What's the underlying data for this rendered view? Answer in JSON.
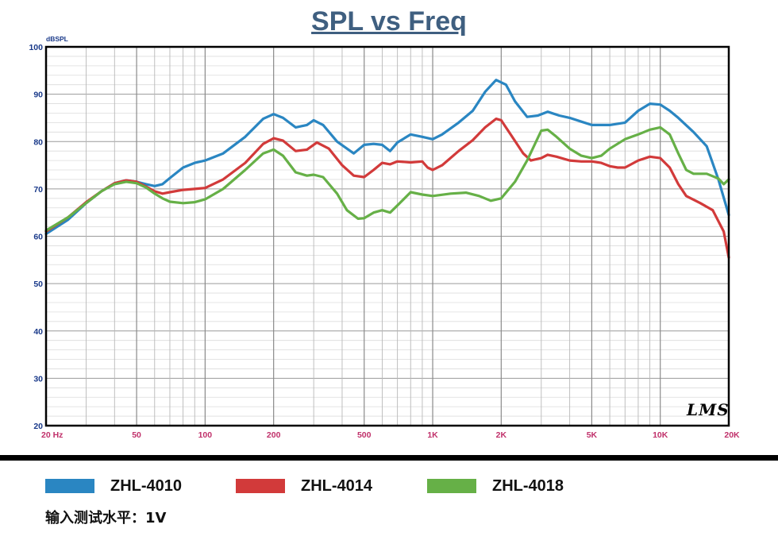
{
  "chart_data": {
    "type": "line",
    "title": "SPL vs Freq",
    "ylabel": "dBSPL",
    "xlabel": "",
    "x_scale": "log",
    "xlim": [
      20,
      20000
    ],
    "ylim": [
      20,
      100
    ],
    "grid": true,
    "x_ticks": [
      {
        "value": 20,
        "label": "20  Hz"
      },
      {
        "value": 50,
        "label": "50"
      },
      {
        "value": 100,
        "label": "100"
      },
      {
        "value": 200,
        "label": "200"
      },
      {
        "value": 500,
        "label": "500"
      },
      {
        "value": 1000,
        "label": "1K"
      },
      {
        "value": 2000,
        "label": "2K"
      },
      {
        "value": 5000,
        "label": "5K"
      },
      {
        "value": 10000,
        "label": "10K"
      },
      {
        "value": 20000,
        "label": "20K"
      }
    ],
    "y_ticks": [
      {
        "value": 20,
        "label": "20"
      },
      {
        "value": 30,
        "label": "30"
      },
      {
        "value": 40,
        "label": "40"
      },
      {
        "value": 50,
        "label": "50"
      },
      {
        "value": 60,
        "label": "60"
      },
      {
        "value": 70,
        "label": "70"
      },
      {
        "value": 80,
        "label": "80"
      },
      {
        "value": 90,
        "label": "90"
      },
      {
        "value": 100,
        "label": "100"
      }
    ],
    "series": [
      {
        "name": "ZHL-4010",
        "color": "#2a86c2",
        "points": [
          [
            20,
            60.5
          ],
          [
            25,
            63.5
          ],
          [
            30,
            67
          ],
          [
            35,
            69.5
          ],
          [
            40,
            71.2
          ],
          [
            45,
            71.8
          ],
          [
            50,
            71.5
          ],
          [
            55,
            71
          ],
          [
            60,
            70.6
          ],
          [
            65,
            71
          ],
          [
            70,
            72.3
          ],
          [
            80,
            74.5
          ],
          [
            90,
            75.5
          ],
          [
            100,
            76
          ],
          [
            120,
            77.5
          ],
          [
            150,
            81
          ],
          [
            180,
            84.8
          ],
          [
            200,
            85.8
          ],
          [
            220,
            85
          ],
          [
            250,
            83
          ],
          [
            280,
            83.5
          ],
          [
            300,
            84.5
          ],
          [
            330,
            83.5
          ],
          [
            380,
            80
          ],
          [
            450,
            77.5
          ],
          [
            500,
            79.3
          ],
          [
            550,
            79.5
          ],
          [
            600,
            79.3
          ],
          [
            650,
            78
          ],
          [
            700,
            79.8
          ],
          [
            800,
            81.5
          ],
          [
            900,
            81
          ],
          [
            1000,
            80.5
          ],
          [
            1100,
            81.5
          ],
          [
            1300,
            84
          ],
          [
            1500,
            86.5
          ],
          [
            1700,
            90.5
          ],
          [
            1900,
            93
          ],
          [
            2100,
            92
          ],
          [
            2300,
            88.5
          ],
          [
            2600,
            85.2
          ],
          [
            2900,
            85.5
          ],
          [
            3200,
            86.3
          ],
          [
            3600,
            85.5
          ],
          [
            4000,
            85
          ],
          [
            4500,
            84.2
          ],
          [
            5000,
            83.5
          ],
          [
            5500,
            83.5
          ],
          [
            6000,
            83.5
          ],
          [
            7000,
            84
          ],
          [
            8000,
            86.5
          ],
          [
            9000,
            88
          ],
          [
            10000,
            87.8
          ],
          [
            11000,
            86.5
          ],
          [
            12000,
            85
          ],
          [
            14000,
            82
          ],
          [
            16000,
            79
          ],
          [
            18000,
            72
          ],
          [
            20000,
            64.5
          ]
        ]
      },
      {
        "name": "ZHL-4014",
        "color": "#d23a3a",
        "points": [
          [
            20,
            61
          ],
          [
            25,
            64
          ],
          [
            30,
            67.2
          ],
          [
            35,
            69.5
          ],
          [
            40,
            71.2
          ],
          [
            45,
            71.8
          ],
          [
            50,
            71.5
          ],
          [
            55,
            70.5
          ],
          [
            60,
            69.5
          ],
          [
            65,
            69
          ],
          [
            70,
            69.3
          ],
          [
            80,
            69.8
          ],
          [
            90,
            70
          ],
          [
            100,
            70.2
          ],
          [
            120,
            72
          ],
          [
            150,
            75.5
          ],
          [
            180,
            79.5
          ],
          [
            200,
            80.7
          ],
          [
            220,
            80.2
          ],
          [
            250,
            78
          ],
          [
            280,
            78.3
          ],
          [
            310,
            79.8
          ],
          [
            350,
            78.5
          ],
          [
            400,
            75
          ],
          [
            450,
            72.8
          ],
          [
            500,
            72.5
          ],
          [
            550,
            74
          ],
          [
            600,
            75.5
          ],
          [
            650,
            75.2
          ],
          [
            700,
            75.8
          ],
          [
            800,
            75.6
          ],
          [
            900,
            75.8
          ],
          [
            950,
            74.5
          ],
          [
            1000,
            74
          ],
          [
            1100,
            75
          ],
          [
            1300,
            78
          ],
          [
            1500,
            80.3
          ],
          [
            1700,
            83
          ],
          [
            1900,
            84.8
          ],
          [
            2000,
            84.5
          ],
          [
            2200,
            81.5
          ],
          [
            2500,
            77.5
          ],
          [
            2700,
            76
          ],
          [
            3000,
            76.5
          ],
          [
            3200,
            77.2
          ],
          [
            3500,
            76.8
          ],
          [
            4000,
            76
          ],
          [
            4500,
            75.8
          ],
          [
            5000,
            75.8
          ],
          [
            5500,
            75.5
          ],
          [
            6000,
            74.8
          ],
          [
            6500,
            74.5
          ],
          [
            7000,
            74.5
          ],
          [
            8000,
            76
          ],
          [
            9000,
            76.8
          ],
          [
            10000,
            76.5
          ],
          [
            11000,
            74.5
          ],
          [
            12000,
            71
          ],
          [
            13000,
            68.5
          ],
          [
            15000,
            67
          ],
          [
            17000,
            65.5
          ],
          [
            19000,
            61
          ],
          [
            20000,
            55.5
          ]
        ]
      },
      {
        "name": "ZHL-4018",
        "color": "#66b047",
        "points": [
          [
            20,
            61.2
          ],
          [
            25,
            64
          ],
          [
            30,
            67
          ],
          [
            35,
            69.5
          ],
          [
            40,
            71
          ],
          [
            45,
            71.5
          ],
          [
            50,
            71.2
          ],
          [
            55,
            70.3
          ],
          [
            60,
            69
          ],
          [
            65,
            68
          ],
          [
            70,
            67.3
          ],
          [
            80,
            67
          ],
          [
            90,
            67.2
          ],
          [
            100,
            67.8
          ],
          [
            120,
            70
          ],
          [
            150,
            74
          ],
          [
            180,
            77.5
          ],
          [
            200,
            78.3
          ],
          [
            220,
            77
          ],
          [
            250,
            73.5
          ],
          [
            280,
            72.8
          ],
          [
            300,
            73
          ],
          [
            330,
            72.5
          ],
          [
            380,
            69
          ],
          [
            420,
            65.5
          ],
          [
            470,
            63.7
          ],
          [
            500,
            63.8
          ],
          [
            550,
            65
          ],
          [
            600,
            65.5
          ],
          [
            650,
            65
          ],
          [
            700,
            66.5
          ],
          [
            800,
            69.3
          ],
          [
            900,
            68.8
          ],
          [
            1000,
            68.5
          ],
          [
            1200,
            69
          ],
          [
            1400,
            69.2
          ],
          [
            1600,
            68.5
          ],
          [
            1800,
            67.5
          ],
          [
            2000,
            68
          ],
          [
            2300,
            71.5
          ],
          [
            2600,
            76
          ],
          [
            3000,
            82.3
          ],
          [
            3200,
            82.5
          ],
          [
            3500,
            81
          ],
          [
            4000,
            78.5
          ],
          [
            4500,
            77
          ],
          [
            5000,
            76.5
          ],
          [
            5500,
            77
          ],
          [
            6000,
            78.5
          ],
          [
            7000,
            80.5
          ],
          [
            8000,
            81.5
          ],
          [
            9000,
            82.5
          ],
          [
            10000,
            83
          ],
          [
            11000,
            81.5
          ],
          [
            12000,
            77.5
          ],
          [
            13000,
            74
          ],
          [
            14000,
            73.2
          ],
          [
            16000,
            73.2
          ],
          [
            18000,
            72.2
          ],
          [
            19000,
            71
          ],
          [
            20000,
            72
          ]
        ]
      }
    ]
  },
  "legend": {
    "items": [
      {
        "label": "ZHL-4010",
        "color": "#2a86c2"
      },
      {
        "label": "ZHL-4014",
        "color": "#d23a3a"
      },
      {
        "label": "ZHL-4018",
        "color": "#66b047"
      }
    ]
  },
  "footer": {
    "input_level": "输入测试水平：1V"
  },
  "logo": {
    "text": "LMS"
  }
}
